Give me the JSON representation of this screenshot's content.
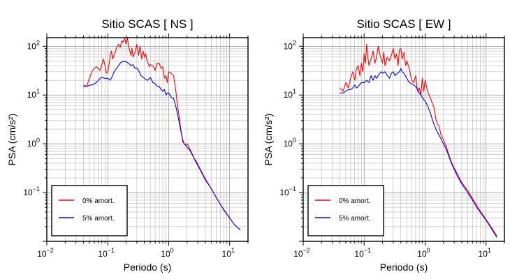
{
  "chart_data": [
    {
      "type": "line",
      "title": "Sitio SCAS [ NS ]",
      "xlabel": "Periodo (s)",
      "ylabel": "PSA (cm/s²)",
      "xscale": "log",
      "yscale": "log",
      "xlim": [
        0.01,
        20
      ],
      "ylim": [
        0.01,
        150
      ],
      "xticks": [
        {
          "base": "10",
          "exp": "−2",
          "value": 0.01
        },
        {
          "base": "10",
          "exp": "−1",
          "value": 0.1
        },
        {
          "base": "10",
          "exp": "0",
          "value": 1
        },
        {
          "base": "10",
          "exp": "1",
          "value": 10
        }
      ],
      "yticks": [
        {
          "base": "10",
          "exp": "−1",
          "value": 0.1
        },
        {
          "base": "10",
          "exp": "0",
          "value": 1
        },
        {
          "base": "10",
          "exp": "1",
          "value": 10
        },
        {
          "base": "10",
          "exp": "2",
          "value": 100
        }
      ],
      "grid": true,
      "legend_position": "bottom-left",
      "series": [
        {
          "name": "0% amort.",
          "color": "#ff0000",
          "x": [
            0.04,
            0.045,
            0.05,
            0.055,
            0.06,
            0.065,
            0.07,
            0.075,
            0.08,
            0.085,
            0.09,
            0.095,
            0.1,
            0.105,
            0.11,
            0.115,
            0.12,
            0.13,
            0.14,
            0.15,
            0.16,
            0.17,
            0.18,
            0.19,
            0.2,
            0.21,
            0.22,
            0.23,
            0.24,
            0.25,
            0.26,
            0.28,
            0.3,
            0.32,
            0.34,
            0.36,
            0.38,
            0.4,
            0.42,
            0.44,
            0.46,
            0.48,
            0.5,
            0.55,
            0.6,
            0.65,
            0.7,
            0.75,
            0.8,
            0.85,
            0.9,
            0.95,
            1.0,
            1.1,
            1.2,
            1.3,
            1.4,
            1.5,
            1.6,
            1.7,
            1.8,
            1.9,
            2.0,
            2.2,
            2.4,
            2.6,
            2.8,
            3.0,
            3.5,
            4,
            5,
            6,
            7,
            8,
            10,
            12,
            15
          ],
          "y": [
            16,
            15,
            22,
            30,
            35,
            38,
            35,
            32,
            42,
            55,
            40,
            28,
            30,
            42,
            65,
            80,
            55,
            70,
            95,
            110,
            95,
            130,
            120,
            145,
            110,
            150,
            100,
            80,
            65,
            90,
            60,
            75,
            110,
            65,
            100,
            55,
            80,
            60,
            70,
            50,
            45,
            38,
            42,
            40,
            32,
            45,
            45,
            35,
            38,
            22,
            25,
            18,
            30,
            28,
            25,
            13,
            6,
            3.2,
            1.8,
            1.1,
            1.0,
            0.95,
            1.0,
            0.8,
            0.65,
            0.5,
            0.45,
            0.38,
            0.26,
            0.19,
            0.12,
            0.08,
            0.058,
            0.045,
            0.03,
            0.022,
            0.017
          ]
        },
        {
          "name": "5% amort.",
          "color": "#0000ff",
          "x": [
            0.04,
            0.045,
            0.05,
            0.055,
            0.06,
            0.065,
            0.07,
            0.075,
            0.08,
            0.09,
            0.1,
            0.11,
            0.12,
            0.13,
            0.14,
            0.15,
            0.16,
            0.17,
            0.18,
            0.19,
            0.2,
            0.22,
            0.24,
            0.26,
            0.28,
            0.3,
            0.32,
            0.35,
            0.4,
            0.45,
            0.5,
            0.55,
            0.6,
            0.65,
            0.7,
            0.75,
            0.8,
            0.85,
            0.9,
            0.95,
            1.0,
            1.1,
            1.2,
            1.3,
            1.4,
            1.5,
            1.6,
            1.7,
            1.8,
            1.9,
            2.0,
            2.2,
            2.4,
            2.6,
            2.8,
            3.0,
            3.5,
            4,
            5,
            6,
            7,
            8,
            10,
            12,
            15
          ],
          "y": [
            15,
            15,
            16,
            16,
            17,
            18,
            20,
            22,
            23,
            22,
            22,
            20,
            25,
            32,
            35,
            40,
            45,
            48,
            48,
            49,
            48,
            45,
            40,
            42,
            35,
            36,
            32,
            25,
            22,
            20,
            23,
            18,
            17,
            15,
            15,
            13,
            12,
            13,
            10,
            11,
            11,
            9,
            8.5,
            6,
            4,
            2.6,
            1.7,
            1.2,
            1.0,
            0.92,
            0.85,
            0.75,
            0.62,
            0.5,
            0.42,
            0.36,
            0.25,
            0.18,
            0.12,
            0.08,
            0.058,
            0.044,
            0.03,
            0.022,
            0.017
          ]
        }
      ]
    },
    {
      "type": "line",
      "title": "Sitio SCAS [ EW ]",
      "xlabel": "Periodo (s)",
      "ylabel": "PSA (cm/s²)",
      "xscale": "log",
      "yscale": "log",
      "xlim": [
        0.01,
        20
      ],
      "ylim": [
        0.01,
        150
      ],
      "xticks": [
        {
          "base": "10",
          "exp": "−2",
          "value": 0.01
        },
        {
          "base": "10",
          "exp": "−1",
          "value": 0.1
        },
        {
          "base": "10",
          "exp": "0",
          "value": 1
        },
        {
          "base": "10",
          "exp": "1",
          "value": 10
        }
      ],
      "yticks": [
        {
          "base": "10",
          "exp": "−1",
          "value": 0.1
        },
        {
          "base": "10",
          "exp": "0",
          "value": 1
        },
        {
          "base": "10",
          "exp": "1",
          "value": 10
        },
        {
          "base": "10",
          "exp": "2",
          "value": 100
        }
      ],
      "grid": true,
      "legend_position": "bottom-left",
      "series": [
        {
          "name": "0% amort.",
          "color": "#ff0000",
          "x": [
            0.04,
            0.045,
            0.05,
            0.055,
            0.06,
            0.065,
            0.07,
            0.075,
            0.08,
            0.085,
            0.09,
            0.095,
            0.1,
            0.105,
            0.11,
            0.115,
            0.12,
            0.13,
            0.14,
            0.15,
            0.16,
            0.17,
            0.18,
            0.19,
            0.2,
            0.21,
            0.22,
            0.24,
            0.26,
            0.28,
            0.3,
            0.32,
            0.34,
            0.36,
            0.38,
            0.4,
            0.42,
            0.45,
            0.48,
            0.5,
            0.55,
            0.6,
            0.65,
            0.7,
            0.75,
            0.8,
            0.85,
            0.9,
            0.95,
            1.0,
            1.1,
            1.2,
            1.3,
            1.4,
            1.5,
            1.6,
            1.7,
            1.8,
            2.0,
            2.2,
            2.4,
            2.6,
            2.8,
            3.0,
            3.5,
            4,
            5,
            6,
            7,
            8,
            10,
            12,
            15
          ],
          "y": [
            14,
            12,
            18,
            14,
            22,
            30,
            20,
            35,
            40,
            25,
            45,
            30,
            70,
            45,
            110,
            60,
            40,
            55,
            80,
            45,
            60,
            100,
            70,
            55,
            45,
            75,
            40,
            60,
            50,
            65,
            90,
            55,
            70,
            40,
            85,
            90,
            55,
            75,
            40,
            50,
            35,
            20,
            18,
            25,
            12,
            14,
            10,
            22,
            12,
            20,
            12,
            9,
            7,
            5.5,
            3.2,
            2.5,
            2.3,
            1.6,
            1.2,
            0.9,
            0.65,
            0.48,
            0.38,
            0.32,
            0.22,
            0.16,
            0.11,
            0.075,
            0.055,
            0.042,
            0.028,
            0.02,
            0.013
          ]
        },
        {
          "name": "5% amort.",
          "color": "#0000ff",
          "x": [
            0.04,
            0.045,
            0.05,
            0.055,
            0.06,
            0.065,
            0.07,
            0.075,
            0.08,
            0.09,
            0.1,
            0.11,
            0.12,
            0.13,
            0.14,
            0.15,
            0.16,
            0.17,
            0.18,
            0.19,
            0.2,
            0.22,
            0.24,
            0.26,
            0.28,
            0.3,
            0.32,
            0.35,
            0.38,
            0.4,
            0.42,
            0.45,
            0.5,
            0.55,
            0.6,
            0.65,
            0.7,
            0.75,
            0.8,
            0.85,
            0.9,
            0.95,
            1.0,
            1.1,
            1.2,
            1.3,
            1.4,
            1.5,
            1.6,
            1.7,
            1.8,
            2.0,
            2.2,
            2.4,
            2.6,
            2.8,
            3.0,
            3.5,
            4,
            5,
            6,
            7,
            8,
            10,
            12,
            15
          ],
          "y": [
            11,
            11,
            12,
            13,
            13,
            14,
            16,
            14,
            15,
            18,
            18,
            20,
            18,
            25,
            20,
            25,
            22,
            25,
            28,
            30,
            28,
            30,
            25,
            22,
            28,
            30,
            25,
            28,
            30,
            35,
            30,
            28,
            22,
            18,
            17,
            16,
            15,
            13,
            11,
            10,
            9,
            8,
            7.5,
            6,
            4.5,
            3.3,
            2.5,
            2.0,
            1.7,
            1.5,
            1.3,
            1.0,
            0.8,
            0.6,
            0.45,
            0.36,
            0.3,
            0.2,
            0.15,
            0.1,
            0.07,
            0.05,
            0.04,
            0.027,
            0.019,
            0.012
          ]
        }
      ]
    }
  ]
}
